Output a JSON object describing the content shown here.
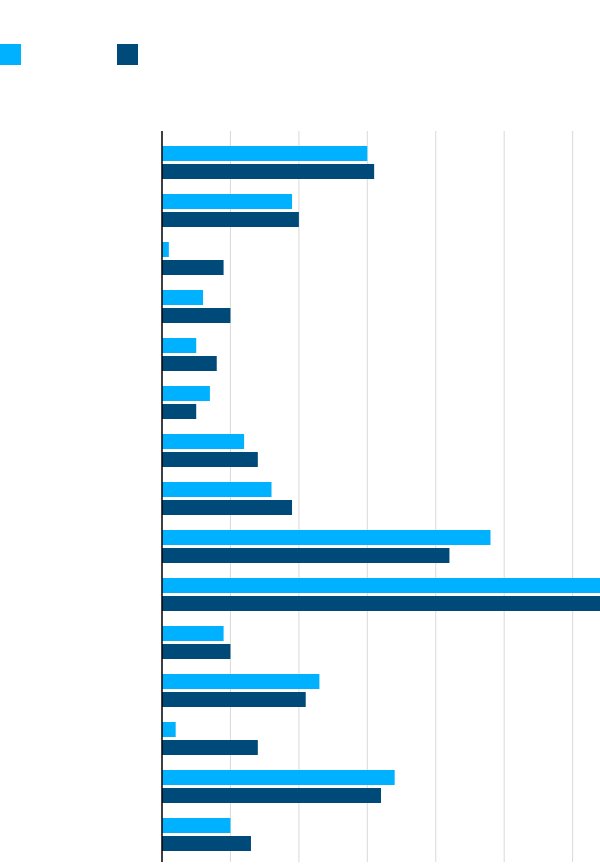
{
  "chart_data": {
    "type": "bar",
    "orientation": "horizontal",
    "title": "",
    "xlabel": "",
    "ylabel": "",
    "xlim": [
      0,
      64
    ],
    "gridlines": [
      0,
      10,
      20,
      30,
      40,
      50,
      60
    ],
    "grid": true,
    "legend_position": "top-left",
    "categories": [
      "",
      "",
      "",
      "",
      "",
      "",
      "",
      "",
      "",
      "",
      "",
      "",
      "",
      "",
      ""
    ],
    "series": [
      {
        "name": "",
        "color": "#00b1ff",
        "values": [
          30,
          19,
          1,
          6,
          5,
          7,
          12,
          16,
          48,
          64,
          9,
          23,
          2,
          34,
          10
        ]
      },
      {
        "name": "",
        "color": "#004a7a",
        "values": [
          31,
          20,
          9,
          10,
          8,
          5,
          14,
          19,
          42,
          64,
          10,
          21,
          14,
          32,
          13
        ]
      }
    ]
  }
}
